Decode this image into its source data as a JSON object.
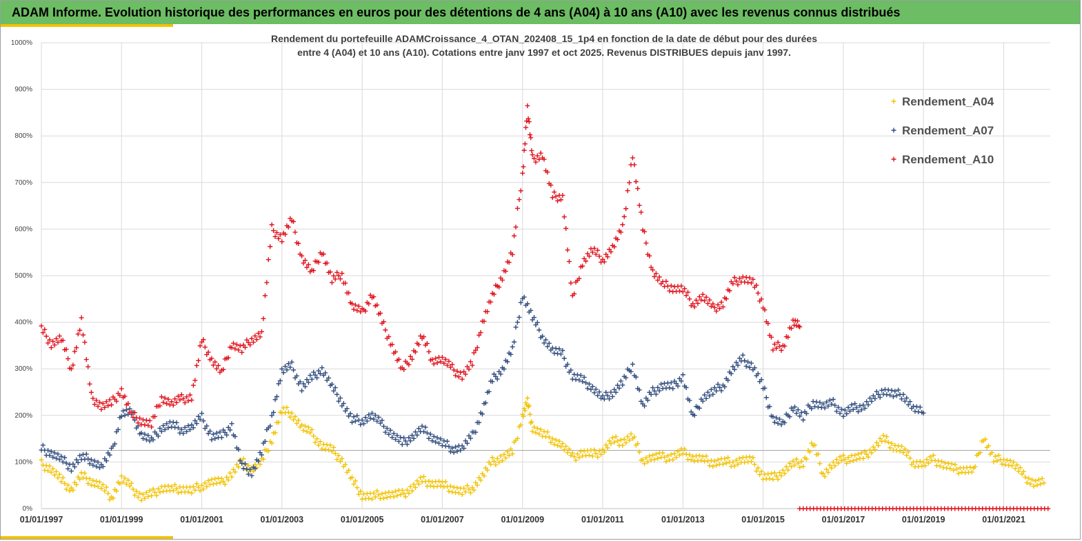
{
  "banner": {
    "title": "ADAM Informe. Evolution historique des performances en euros pour des détentions de 4 ans (A04) à 10 ans (A10) avec les revenus connus distribués"
  },
  "colors": {
    "banner": "#6cbd63",
    "accent": "#f2c200",
    "A04": "#f2c200",
    "A07": "#2f4b7c",
    "A10": "#e0101a"
  },
  "chart_data": {
    "type": "scatter",
    "title": [
      "Rendement du portefeuille ADAMCroissance_4_OTAN_202408_15_1p4  en fonction de la date de début pour des durées",
      "entre 4 (A04) et 10 ans (A10). Cotations entre janv 1997 et oct 2025. Revenus DISTRIBUES depuis janv 1997."
    ],
    "xlabel": "",
    "ylabel": "",
    "x_range": [
      "1997-01-01",
      "2022-03-01"
    ],
    "ylim": [
      0,
      10
    ],
    "y_ticks": [
      "0%",
      "100%",
      "200%",
      "300%",
      "400%",
      "500%",
      "600%",
      "700%",
      "800%",
      "900%",
      "1000%"
    ],
    "x_ticks": [
      "01/01/1997",
      "01/01/1999",
      "01/01/2001",
      "01/01/2003",
      "01/01/2005",
      "01/01/2007",
      "01/01/2009",
      "01/01/2011",
      "01/01/2013",
      "01/01/2015",
      "01/01/2017",
      "01/01/2019",
      "01/01/2021"
    ],
    "grid": true,
    "legend_position": "top-right",
    "reference_line_y": 1.25,
    "series": [
      {
        "name": "Rendement_A04",
        "color": "#f2c200",
        "marker": "+",
        "points": [
          [
            "1997-01-01",
            0.95
          ],
          [
            "1997-04-01",
            0.85
          ],
          [
            "1997-07-01",
            0.6
          ],
          [
            "1997-10-01",
            0.42
          ],
          [
            "1998-01-01",
            0.7
          ],
          [
            "1998-04-01",
            0.6
          ],
          [
            "1998-07-01",
            0.48
          ],
          [
            "1998-10-01",
            0.25
          ],
          [
            "1999-01-01",
            0.65
          ],
          [
            "1999-04-01",
            0.45
          ],
          [
            "1999-07-01",
            0.25
          ],
          [
            "1999-10-01",
            0.3
          ],
          [
            "2000-01-01",
            0.45
          ],
          [
            "2000-04-01",
            0.4
          ],
          [
            "2000-07-01",
            0.45
          ],
          [
            "2000-10-01",
            0.38
          ],
          [
            "2001-01-01",
            0.5
          ],
          [
            "2001-04-01",
            0.58
          ],
          [
            "2001-07-01",
            0.55
          ],
          [
            "2001-10-01",
            0.75
          ],
          [
            "2002-01-01",
            1.0
          ],
          [
            "2002-04-01",
            0.85
          ],
          [
            "2002-07-01",
            1.0
          ],
          [
            "2002-10-01",
            1.5
          ],
          [
            "2003-01-01",
            2.1
          ],
          [
            "2003-04-01",
            2.05
          ],
          [
            "2003-07-01",
            1.75
          ],
          [
            "2003-10-01",
            1.6
          ],
          [
            "2004-01-01",
            1.35
          ],
          [
            "2004-04-01",
            1.25
          ],
          [
            "2004-07-01",
            1.05
          ],
          [
            "2004-10-01",
            0.6
          ],
          [
            "2005-01-01",
            0.3
          ],
          [
            "2005-04-01",
            0.25
          ],
          [
            "2005-07-01",
            0.32
          ],
          [
            "2005-10-01",
            0.3
          ],
          [
            "2006-01-01",
            0.3
          ],
          [
            "2006-04-01",
            0.45
          ],
          [
            "2006-07-01",
            0.6
          ],
          [
            "2006-10-01",
            0.55
          ],
          [
            "2007-01-01",
            0.5
          ],
          [
            "2007-04-01",
            0.45
          ],
          [
            "2007-07-01",
            0.35
          ],
          [
            "2007-10-01",
            0.45
          ],
          [
            "2008-01-01",
            0.7
          ],
          [
            "2008-04-01",
            1.0
          ],
          [
            "2008-07-01",
            1.1
          ],
          [
            "2008-10-01",
            1.2
          ],
          [
            "2009-01-01",
            2.0
          ],
          [
            "2009-02-15",
            2.3
          ],
          [
            "2009-04-01",
            1.75
          ],
          [
            "2009-07-01",
            1.6
          ],
          [
            "2009-10-01",
            1.5
          ],
          [
            "2010-01-01",
            1.35
          ],
          [
            "2010-04-01",
            1.1
          ],
          [
            "2010-07-01",
            1.2
          ],
          [
            "2010-10-01",
            1.15
          ],
          [
            "2011-01-01",
            1.25
          ],
          [
            "2011-04-01",
            1.45
          ],
          [
            "2011-07-01",
            1.45
          ],
          [
            "2011-10-01",
            1.55
          ],
          [
            "2012-01-01",
            1.05
          ],
          [
            "2012-04-01",
            1.1
          ],
          [
            "2012-07-01",
            1.1
          ],
          [
            "2012-10-01",
            1.12
          ],
          [
            "2013-01-01",
            1.2
          ],
          [
            "2013-04-01",
            1.1
          ],
          [
            "2013-07-01",
            1.05
          ],
          [
            "2013-10-01",
            1.0
          ],
          [
            "2014-01-01",
            1.0
          ],
          [
            "2014-04-01",
            1.0
          ],
          [
            "2014-07-01",
            1.05
          ],
          [
            "2014-10-01",
            1.0
          ],
          [
            "2015-01-01",
            0.7
          ],
          [
            "2015-04-01",
            0.65
          ],
          [
            "2015-07-01",
            0.8
          ],
          [
            "2015-10-01",
            0.95
          ],
          [
            "2016-01-01",
            1.0
          ],
          [
            "2016-04-01",
            1.4
          ],
          [
            "2016-07-01",
            0.75
          ],
          [
            "2016-10-01",
            0.95
          ],
          [
            "2017-01-01",
            1.05
          ],
          [
            "2017-04-01",
            1.1
          ],
          [
            "2017-07-01",
            1.1
          ],
          [
            "2017-10-01",
            1.3
          ],
          [
            "2018-01-01",
            1.5
          ],
          [
            "2018-04-01",
            1.35
          ],
          [
            "2018-07-01",
            1.25
          ],
          [
            "2018-10-01",
            1.0
          ],
          [
            "2019-01-01",
            0.95
          ],
          [
            "2019-04-01",
            1.05
          ],
          [
            "2019-07-01",
            0.95
          ],
          [
            "2019-10-01",
            0.85
          ],
          [
            "2020-01-01",
            0.85
          ],
          [
            "2020-04-01",
            0.8
          ],
          [
            "2020-07-01",
            1.55
          ],
          [
            "2020-10-01",
            1.05
          ],
          [
            "2021-01-01",
            1.05
          ],
          [
            "2021-04-01",
            0.95
          ],
          [
            "2021-07-01",
            0.7
          ],
          [
            "2021-10-01",
            0.55
          ],
          [
            "2022-01-01",
            0.55
          ]
        ]
      },
      {
        "name": "Rendement_A07",
        "color": "#2f4b7c",
        "marker": "+",
        "points": [
          [
            "1997-01-01",
            1.28
          ],
          [
            "1997-04-01",
            1.2
          ],
          [
            "1997-07-01",
            1.05
          ],
          [
            "1997-10-01",
            0.9
          ],
          [
            "1998-01-01",
            1.1
          ],
          [
            "1998-04-01",
            1.05
          ],
          [
            "1998-07-01",
            0.9
          ],
          [
            "1998-10-01",
            1.2
          ],
          [
            "1999-01-01",
            2.05
          ],
          [
            "1999-04-01",
            2.05
          ],
          [
            "1999-07-01",
            1.6
          ],
          [
            "1999-10-01",
            1.45
          ],
          [
            "2000-01-01",
            1.75
          ],
          [
            "2000-04-01",
            1.8
          ],
          [
            "2000-07-01",
            1.7
          ],
          [
            "2000-10-01",
            1.75
          ],
          [
            "2001-01-01",
            1.95
          ],
          [
            "2001-04-01",
            1.55
          ],
          [
            "2001-07-01",
            1.55
          ],
          [
            "2001-10-01",
            1.8
          ],
          [
            "2002-01-01",
            0.9
          ],
          [
            "2002-04-01",
            0.8
          ],
          [
            "2002-07-01",
            1.2
          ],
          [
            "2002-10-01",
            2.0
          ],
          [
            "2003-01-01",
            2.95
          ],
          [
            "2003-04-01",
            3.05
          ],
          [
            "2003-07-01",
            2.6
          ],
          [
            "2003-10-01",
            2.8
          ],
          [
            "2004-01-01",
            3.0
          ],
          [
            "2004-04-01",
            2.6
          ],
          [
            "2004-07-01",
            2.3
          ],
          [
            "2004-10-01",
            1.9
          ],
          [
            "2005-01-01",
            1.9
          ],
          [
            "2005-04-01",
            2.0
          ],
          [
            "2005-07-01",
            1.8
          ],
          [
            "2005-10-01",
            1.6
          ],
          [
            "2006-01-01",
            1.4
          ],
          [
            "2006-04-01",
            1.55
          ],
          [
            "2006-07-01",
            1.7
          ],
          [
            "2006-10-01",
            1.55
          ],
          [
            "2007-01-01",
            1.4
          ],
          [
            "2007-04-01",
            1.3
          ],
          [
            "2007-07-01",
            1.3
          ],
          [
            "2007-10-01",
            1.55
          ],
          [
            "2008-01-01",
            2.1
          ],
          [
            "2008-04-01",
            2.75
          ],
          [
            "2008-07-01",
            3.0
          ],
          [
            "2008-10-01",
            3.4
          ],
          [
            "2009-01-01",
            4.6
          ],
          [
            "2009-04-01",
            4.1
          ],
          [
            "2009-07-01",
            3.7
          ],
          [
            "2009-10-01",
            3.4
          ],
          [
            "2010-01-01",
            3.3
          ],
          [
            "2010-04-01",
            2.85
          ],
          [
            "2010-07-01",
            2.75
          ],
          [
            "2010-10-01",
            2.6
          ],
          [
            "2011-01-01",
            2.35
          ],
          [
            "2011-04-01",
            2.5
          ],
          [
            "2011-07-01",
            2.7
          ],
          [
            "2011-10-01",
            3.1
          ],
          [
            "2012-01-01",
            2.2
          ],
          [
            "2012-04-01",
            2.5
          ],
          [
            "2012-07-01",
            2.65
          ],
          [
            "2012-10-01",
            2.6
          ],
          [
            "2013-01-01",
            2.85
          ],
          [
            "2013-04-01",
            1.95
          ],
          [
            "2013-07-01",
            2.4
          ],
          [
            "2013-10-01",
            2.5
          ],
          [
            "2014-01-01",
            2.65
          ],
          [
            "2014-04-01",
            3.0
          ],
          [
            "2014-07-01",
            3.2
          ],
          [
            "2014-10-01",
            3.05
          ],
          [
            "2015-01-01",
            2.6
          ],
          [
            "2015-04-01",
            1.95
          ],
          [
            "2015-07-01",
            1.8
          ],
          [
            "2015-10-01",
            2.2
          ],
          [
            "2016-01-01",
            1.95
          ],
          [
            "2016-04-01",
            2.3
          ],
          [
            "2016-07-01",
            2.2
          ],
          [
            "2016-10-01",
            2.25
          ],
          [
            "2017-01-01",
            2.05
          ],
          [
            "2017-04-01",
            2.15
          ],
          [
            "2017-07-01",
            2.2
          ],
          [
            "2017-10-01",
            2.35
          ],
          [
            "2018-01-01",
            2.55
          ],
          [
            "2018-04-01",
            2.45
          ],
          [
            "2018-07-01",
            2.45
          ],
          [
            "2018-10-01",
            2.15
          ],
          [
            "2019-01-01",
            2.05
          ]
        ]
      },
      {
        "name": "Rendement_A10",
        "color": "#e0101a",
        "marker": "+",
        "points": [
          [
            "1997-01-01",
            3.85
          ],
          [
            "1997-04-01",
            3.55
          ],
          [
            "1997-07-01",
            3.65
          ],
          [
            "1997-10-01",
            3.0
          ],
          [
            "1998-01-01",
            4.05
          ],
          [
            "1998-04-01",
            2.4
          ],
          [
            "1998-07-01",
            2.2
          ],
          [
            "1998-10-01",
            2.25
          ],
          [
            "1999-01-01",
            2.55
          ],
          [
            "1999-04-01",
            2.0
          ],
          [
            "1999-07-01",
            1.9
          ],
          [
            "1999-10-01",
            1.8
          ],
          [
            "2000-01-01",
            2.4
          ],
          [
            "2000-04-01",
            2.25
          ],
          [
            "2000-07-01",
            2.35
          ],
          [
            "2000-10-01",
            2.4
          ],
          [
            "2001-01-01",
            3.6
          ],
          [
            "2001-04-01",
            3.2
          ],
          [
            "2001-07-01",
            2.9
          ],
          [
            "2001-10-01",
            3.55
          ],
          [
            "2002-01-01",
            3.4
          ],
          [
            "2002-04-01",
            3.65
          ],
          [
            "2002-07-01",
            3.75
          ],
          [
            "2002-10-01",
            6.0
          ],
          [
            "2003-01-01",
            5.8
          ],
          [
            "2003-04-01",
            6.2
          ],
          [
            "2003-07-01",
            5.4
          ],
          [
            "2003-10-01",
            5.05
          ],
          [
            "2004-01-01",
            5.55
          ],
          [
            "2004-04-01",
            4.9
          ],
          [
            "2004-07-01",
            5.05
          ],
          [
            "2004-10-01",
            4.35
          ],
          [
            "2005-01-01",
            4.2
          ],
          [
            "2005-04-01",
            4.6
          ],
          [
            "2005-07-01",
            4.0
          ],
          [
            "2005-10-01",
            3.5
          ],
          [
            "2006-01-01",
            2.95
          ],
          [
            "2006-04-01",
            3.3
          ],
          [
            "2006-07-01",
            3.7
          ],
          [
            "2006-10-01",
            3.2
          ],
          [
            "2007-01-01",
            3.2
          ],
          [
            "2007-04-01",
            3.0
          ],
          [
            "2007-07-01",
            2.85
          ],
          [
            "2007-10-01",
            3.1
          ],
          [
            "2008-01-01",
            4.0
          ],
          [
            "2008-04-01",
            4.55
          ],
          [
            "2008-07-01",
            5.0
          ],
          [
            "2008-10-01",
            5.5
          ],
          [
            "2009-01-01",
            7.2
          ],
          [
            "2009-02-15",
            8.6
          ],
          [
            "2009-04-01",
            7.5
          ],
          [
            "2009-07-01",
            7.6
          ],
          [
            "2009-10-01",
            6.7
          ],
          [
            "2010-01-01",
            6.7
          ],
          [
            "2010-04-01",
            4.5
          ],
          [
            "2010-07-01",
            5.3
          ],
          [
            "2010-10-01",
            5.55
          ],
          [
            "2011-01-01",
            5.35
          ],
          [
            "2011-04-01",
            5.6
          ],
          [
            "2011-07-01",
            6.0
          ],
          [
            "2011-10-01",
            7.6
          ],
          [
            "2012-01-01",
            6.0
          ],
          [
            "2012-04-01",
            5.1
          ],
          [
            "2012-07-01",
            4.8
          ],
          [
            "2012-10-01",
            4.75
          ],
          [
            "2013-01-01",
            4.7
          ],
          [
            "2013-04-01",
            4.4
          ],
          [
            "2013-07-01",
            4.55
          ],
          [
            "2013-10-01",
            4.3
          ],
          [
            "2014-01-01",
            4.4
          ],
          [
            "2014-04-01",
            4.85
          ],
          [
            "2014-07-01",
            4.95
          ],
          [
            "2014-10-01",
            4.85
          ],
          [
            "2015-01-01",
            4.4
          ],
          [
            "2015-04-01",
            3.45
          ],
          [
            "2015-07-01",
            3.5
          ],
          [
            "2015-10-01",
            4.0
          ],
          [
            "2015-12-01",
            3.9
          ]
        ]
      }
    ]
  }
}
